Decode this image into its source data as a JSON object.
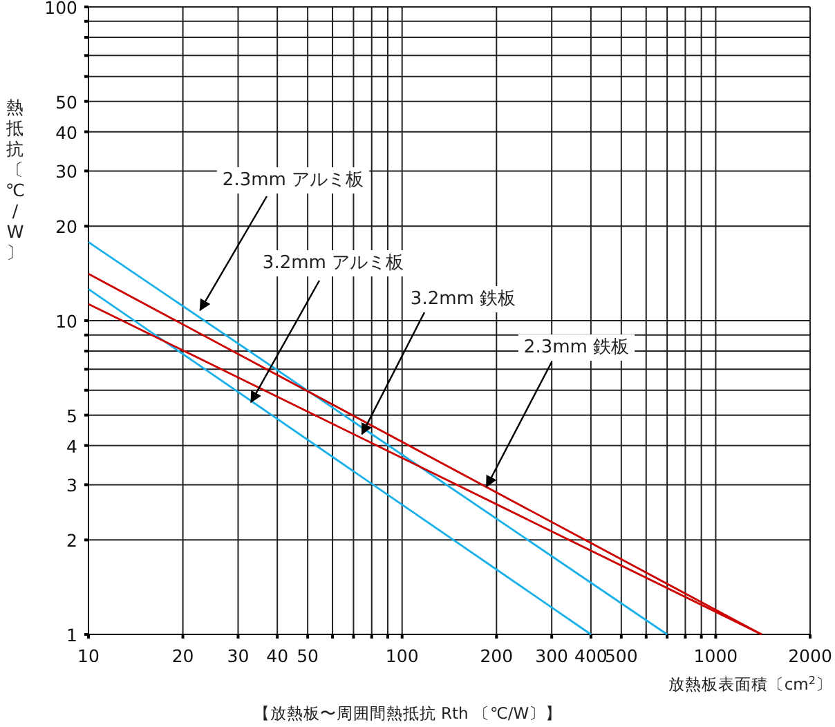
{
  "chart_data": {
    "type": "line",
    "xlabel": "放熱板表面積〔cm$^{2}$〕",
    "ylabel": "熱抵抗〔℃/W〕",
    "log": "xy",
    "grid": true,
    "line_style": "solid",
    "xlim": [
      10,
      2000
    ],
    "ylim": [
      1,
      100
    ],
    "xticks": [
      10,
      20,
      30,
      40,
      50,
      {
        "value": 60,
        "label": null
      },
      {
        "value": 70,
        "label": null
      },
      {
        "value": 80,
        "label": null
      },
      {
        "value": 90,
        "label": null
      },
      100,
      200,
      300,
      400,
      500,
      {
        "value": 600,
        "label": null
      },
      {
        "value": 700,
        "label": null
      },
      {
        "value": 800,
        "label": null
      },
      {
        "value": 900,
        "label": null
      },
      1000,
      2000
    ],
    "yticks": [
      1,
      2,
      3,
      4,
      5,
      {
        "value": 6,
        "label": null
      },
      {
        "value": 7,
        "label": null
      },
      {
        "value": 8,
        "label": null
      },
      {
        "value": 9,
        "label": null
      },
      10,
      20,
      30,
      40,
      50,
      {
        "value": 60,
        "label": null
      },
      {
        "value": 70,
        "label": null
      },
      {
        "value": 80,
        "label": null
      },
      {
        "value": 90,
        "label": null
      },
      100
    ],
    "series": [
      {
        "color": "#1ab0e8",
        "x": [
          10,
          700
        ],
        "values": [
          17.8,
          1
        ]
      },
      {
        "color": "#1ab0e8",
        "x": [
          10,
          400
        ],
        "values": [
          12.6,
          1
        ]
      },
      {
        "color": "#cc0000",
        "x": [
          10,
          1400
        ],
        "values": [
          14.1,
          1
        ]
      },
      {
        "color": "#cc0000",
        "x": [
          10,
          1400
        ],
        "values": [
          11.3,
          1
        ]
      }
    ],
    "annotations": [
      {
        "text": "2.3mm アルミ板",
        "x": 22.7,
        "y": 10.8
      },
      {
        "text": "3.2mm アルミ板",
        "x": 33,
        "y": 5.5
      },
      {
        "text": "3.2mm 鉄板",
        "x": 74.5,
        "y": 4.35
      },
      {
        "text": "2.3mm 鉄板",
        "x": 186,
        "y": 2.96
      },
      "【放熱板〜周囲間熱抵抗 Rth 〔℃/W〕】"
    ]
  }
}
